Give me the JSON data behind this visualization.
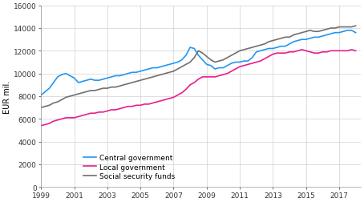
{
  "title": "",
  "ylabel": "EUR mil.",
  "ylim": [
    0,
    16000
  ],
  "yticks": [
    0,
    2000,
    4000,
    6000,
    8000,
    10000,
    12000,
    14000,
    16000
  ],
  "xticks": [
    1999,
    2001,
    2003,
    2005,
    2007,
    2009,
    2011,
    2013,
    2015,
    2017
  ],
  "xlim": [
    1999,
    2018.3
  ],
  "central_government": {
    "label": "Central government",
    "color": "#2196f3",
    "x": [
      1999,
      1999.25,
      1999.5,
      1999.75,
      2000,
      2000.25,
      2000.5,
      2000.75,
      2001,
      2001.25,
      2001.5,
      2001.75,
      2002,
      2002.25,
      2002.5,
      2002.75,
      2003,
      2003.25,
      2003.5,
      2003.75,
      2004,
      2004.25,
      2004.5,
      2004.75,
      2005,
      2005.25,
      2005.5,
      2005.75,
      2006,
      2006.25,
      2006.5,
      2006.75,
      2007,
      2007.25,
      2007.5,
      2007.75,
      2008,
      2008.25,
      2008.5,
      2008.75,
      2009,
      2009.25,
      2009.5,
      2009.75,
      2010,
      2010.25,
      2010.5,
      2010.75,
      2011,
      2011.25,
      2011.5,
      2011.75,
      2012,
      2012.25,
      2012.5,
      2012.75,
      2013,
      2013.25,
      2013.5,
      2013.75,
      2014,
      2014.25,
      2014.5,
      2014.75,
      2015,
      2015.25,
      2015.5,
      2015.75,
      2016,
      2016.25,
      2016.5,
      2016.75,
      2017,
      2017.25,
      2017.5,
      2017.75,
      2018
    ],
    "y": [
      8100,
      8400,
      8700,
      9200,
      9700,
      9900,
      10000,
      9800,
      9600,
      9200,
      9300,
      9400,
      9500,
      9400,
      9400,
      9500,
      9600,
      9700,
      9800,
      9800,
      9900,
      10000,
      10100,
      10100,
      10200,
      10300,
      10400,
      10500,
      10500,
      10600,
      10700,
      10800,
      10900,
      11000,
      11200,
      11600,
      12300,
      12200,
      11600,
      11200,
      10800,
      10700,
      10400,
      10500,
      10500,
      10700,
      10900,
      11000,
      11000,
      11100,
      11100,
      11400,
      11900,
      12000,
      12100,
      12200,
      12200,
      12300,
      12400,
      12400,
      12600,
      12800,
      12900,
      13000,
      13000,
      13100,
      13200,
      13200,
      13300,
      13400,
      13500,
      13600,
      13600,
      13700,
      13800,
      13800,
      13600
    ]
  },
  "local_government": {
    "label": "Local government",
    "color": "#e91e8c",
    "x": [
      1999,
      1999.25,
      1999.5,
      1999.75,
      2000,
      2000.25,
      2000.5,
      2000.75,
      2001,
      2001.25,
      2001.5,
      2001.75,
      2002,
      2002.25,
      2002.5,
      2002.75,
      2003,
      2003.25,
      2003.5,
      2003.75,
      2004,
      2004.25,
      2004.5,
      2004.75,
      2005,
      2005.25,
      2005.5,
      2005.75,
      2006,
      2006.25,
      2006.5,
      2006.75,
      2007,
      2007.25,
      2007.5,
      2007.75,
      2008,
      2008.25,
      2008.5,
      2008.75,
      2009,
      2009.25,
      2009.5,
      2009.75,
      2010,
      2010.25,
      2010.5,
      2010.75,
      2011,
      2011.25,
      2011.5,
      2011.75,
      2012,
      2012.25,
      2012.5,
      2012.75,
      2013,
      2013.25,
      2013.5,
      2013.75,
      2014,
      2014.25,
      2014.5,
      2014.75,
      2015,
      2015.25,
      2015.5,
      2015.75,
      2016,
      2016.25,
      2016.5,
      2016.75,
      2017,
      2017.25,
      2017.5,
      2017.75,
      2018
    ],
    "y": [
      5400,
      5500,
      5600,
      5800,
      5900,
      6000,
      6100,
      6100,
      6100,
      6200,
      6300,
      6400,
      6500,
      6500,
      6600,
      6600,
      6700,
      6800,
      6800,
      6900,
      7000,
      7100,
      7100,
      7200,
      7200,
      7300,
      7300,
      7400,
      7500,
      7600,
      7700,
      7800,
      7900,
      8100,
      8300,
      8600,
      9000,
      9200,
      9500,
      9700,
      9700,
      9700,
      9700,
      9800,
      9900,
      10000,
      10200,
      10400,
      10600,
      10700,
      10800,
      10900,
      11000,
      11100,
      11300,
      11500,
      11700,
      11800,
      11800,
      11800,
      11900,
      11900,
      12000,
      12100,
      12000,
      11900,
      11800,
      11800,
      11900,
      11900,
      12000,
      12000,
      12000,
      12000,
      12000,
      12100,
      12000
    ]
  },
  "social_security": {
    "label": "Social security funds",
    "color": "#707070",
    "x": [
      1999,
      1999.25,
      1999.5,
      1999.75,
      2000,
      2000.25,
      2000.5,
      2000.75,
      2001,
      2001.25,
      2001.5,
      2001.75,
      2002,
      2002.25,
      2002.5,
      2002.75,
      2003,
      2003.25,
      2003.5,
      2003.75,
      2004,
      2004.25,
      2004.5,
      2004.75,
      2005,
      2005.25,
      2005.5,
      2005.75,
      2006,
      2006.25,
      2006.5,
      2006.75,
      2007,
      2007.25,
      2007.5,
      2007.75,
      2008,
      2008.25,
      2008.5,
      2008.75,
      2009,
      2009.25,
      2009.5,
      2009.75,
      2010,
      2010.25,
      2010.5,
      2010.75,
      2011,
      2011.25,
      2011.5,
      2011.75,
      2012,
      2012.25,
      2012.5,
      2012.75,
      2013,
      2013.25,
      2013.5,
      2013.75,
      2014,
      2014.25,
      2014.5,
      2014.75,
      2015,
      2015.25,
      2015.5,
      2015.75,
      2016,
      2016.25,
      2016.5,
      2016.75,
      2017,
      2017.25,
      2017.5,
      2017.75,
      2018
    ],
    "y": [
      7000,
      7100,
      7200,
      7400,
      7500,
      7700,
      7900,
      8000,
      8100,
      8200,
      8300,
      8400,
      8500,
      8500,
      8600,
      8700,
      8700,
      8800,
      8800,
      8900,
      9000,
      9100,
      9200,
      9300,
      9400,
      9500,
      9600,
      9700,
      9800,
      9900,
      10000,
      10100,
      10200,
      10400,
      10600,
      10800,
      11000,
      11400,
      12000,
      11800,
      11500,
      11200,
      11000,
      11100,
      11200,
      11400,
      11600,
      11800,
      12000,
      12100,
      12200,
      12300,
      12400,
      12500,
      12600,
      12800,
      12900,
      13000,
      13100,
      13200,
      13200,
      13400,
      13500,
      13600,
      13700,
      13800,
      13700,
      13700,
      13800,
      13900,
      14000,
      14000,
      14100,
      14100,
      14100,
      14100,
      14200
    ]
  },
  "bg_color": "#ffffff",
  "grid_color": "#d0d0d0",
  "tick_fontsize": 6.5,
  "ylabel_fontsize": 7,
  "legend_fontsize": 6.5,
  "linewidth": 1.2
}
